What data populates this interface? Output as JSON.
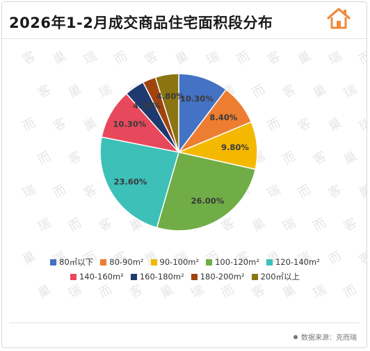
{
  "header": {
    "title": "2026年1-2月成交商品住宅面积段分布"
  },
  "source": {
    "label": "数据来源：克而瑞"
  },
  "chart_data": {
    "type": "pie",
    "title": "2026年1-2月成交商品住宅面积段分布",
    "legend_position": "bottom",
    "start_angle_deg": 0,
    "direction": "clockwise",
    "slices": [
      {
        "name": "80㎡以下",
        "value": 10.3,
        "label": "10.30%",
        "color": "#4472c4"
      },
      {
        "name": "80-90m²",
        "value": 8.4,
        "label": "8.40%",
        "color": "#ed7d31"
      },
      {
        "name": "90-100m²",
        "value": 9.8,
        "label": "9.80%",
        "color": "#f5b800"
      },
      {
        "name": "100-120m²",
        "value": 26.0,
        "label": "26.00%",
        "color": "#70ad47"
      },
      {
        "name": "120-140m²",
        "value": 23.6,
        "label": "23.60%",
        "color": "#3cc0b8"
      },
      {
        "name": "140-160m²",
        "value": 10.3,
        "label": "10.30%",
        "color": "#e8485c"
      },
      {
        "name": "160-180m²",
        "value": 4.1,
        "label": "4.10%",
        "color": "#1f3a6e"
      },
      {
        "name": "180-200m²",
        "value": 2.7,
        "label": "",
        "color": "#a0430f"
      },
      {
        "name": "200㎡以上",
        "value": 4.8,
        "label": "4.80%",
        "color": "#8b7512"
      }
    ]
  }
}
